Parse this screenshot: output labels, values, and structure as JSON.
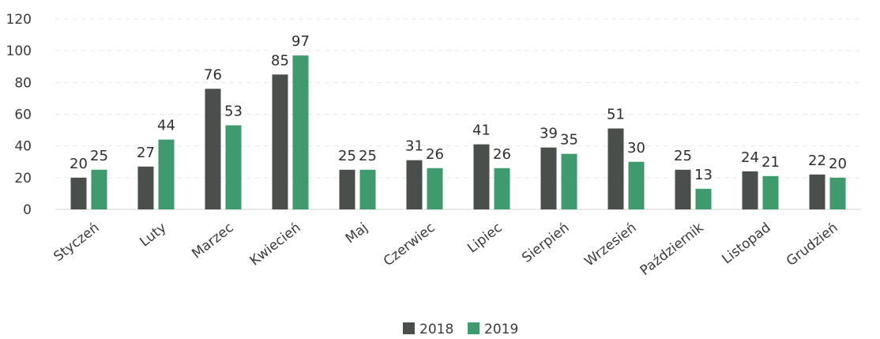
{
  "chart_data": {
    "type": "bar",
    "categories": [
      "Styczeń",
      "Luty",
      "Marzec",
      "Kwiecień",
      "Maj",
      "Czerwiec",
      "Lipiec",
      "Sierpień",
      "Wrzesień",
      "Październik",
      "Listopad",
      "Grudzień"
    ],
    "series": [
      {
        "name": "2018",
        "color": "#4a4f4c",
        "values": [
          20,
          27,
          76,
          85,
          25,
          31,
          41,
          39,
          51,
          25,
          24,
          22
        ]
      },
      {
        "name": "2019",
        "color": "#3f9a6e",
        "values": [
          25,
          44,
          53,
          97,
          25,
          26,
          26,
          35,
          30,
          13,
          21,
          20
        ]
      }
    ],
    "yticks": [
      "0",
      "20",
      "40",
      "60",
      "80",
      "100",
      "120"
    ],
    "ylim": [
      0,
      120
    ],
    "grid": true,
    "legend_position": "bottom-center",
    "title": "",
    "xlabel": "",
    "ylabel": ""
  }
}
